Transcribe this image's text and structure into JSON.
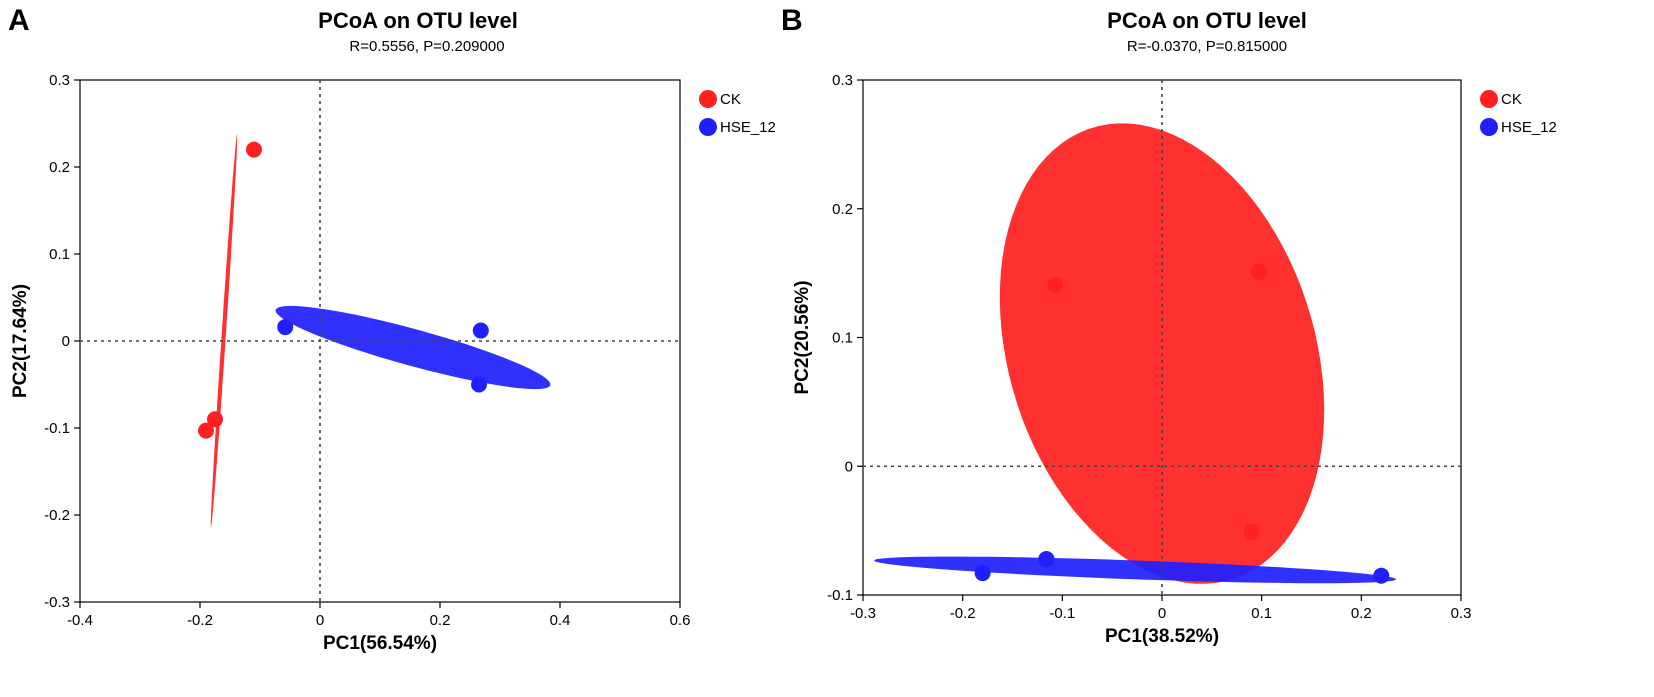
{
  "chart_data": [
    {
      "type": "scatter",
      "panel_label": "A",
      "title": "PCoA on OTU level",
      "subtitle": "R=0.5556, P=0.209000",
      "xlabel": "PC1(56.54%)",
      "ylabel": "PC2(17.64%)",
      "xlim": [
        -0.4,
        0.6
      ],
      "ylim": [
        -0.3,
        0.3
      ],
      "xticks": [
        -0.4,
        -0.2,
        0,
        0.2,
        0.4,
        0.6
      ],
      "yticks": [
        -0.3,
        -0.2,
        -0.1,
        0,
        0.1,
        0.2,
        0.3
      ],
      "xtick_labels": [
        "-0.4",
        "-0.2",
        "0",
        "0.2",
        "0.4",
        "0.6"
      ],
      "ytick_labels": [
        "-0.3",
        "-0.2",
        "-0.1",
        "0",
        "0.1",
        "0.2",
        "0.3"
      ],
      "reference_lines": {
        "x": 0,
        "y": 0
      },
      "legend": {
        "placement": "top-right outside"
      },
      "series": [
        {
          "name": "CK",
          "color": "#ff2020",
          "points": [
            [
              -0.11,
              0.22
            ],
            [
              -0.19,
              -0.103
            ],
            [
              -0.175,
              -0.09
            ]
          ],
          "ellipse": {
            "cx": -0.16,
            "cy": 0.0115,
            "semi_major": 0.227,
            "semi_minor": 0.0035,
            "angle_deg": 84.5
          }
        },
        {
          "name": "HSE_12",
          "color": "#2020ff",
          "points": [
            [
              -0.058,
              0.016
            ],
            [
              0.268,
              0.012
            ],
            [
              0.265,
              -0.05
            ]
          ],
          "ellipse": {
            "cx": 0.155,
            "cy": -0.0075,
            "semi_major": 0.233,
            "semi_minor": 0.0215,
            "angle_deg": -10.6
          }
        }
      ]
    },
    {
      "type": "scatter",
      "panel_label": "B",
      "title": "PCoA on OTU level",
      "subtitle": "R=-0.0370, P=0.815000",
      "xlabel": "PC1(38.52%)",
      "ylabel": "PC2(20.56%)",
      "xlim": [
        -0.3,
        0.3
      ],
      "ylim": [
        -0.1,
        0.3
      ],
      "xticks": [
        -0.3,
        -0.2,
        -0.1,
        0,
        0.1,
        0.2,
        0.3
      ],
      "yticks": [
        -0.1,
        0,
        0.1,
        0.2,
        0.3
      ],
      "xtick_labels": [
        "-0.3",
        "-0.2",
        "-0.1",
        "0",
        "0.1",
        "0.2",
        "0.3"
      ],
      "ytick_labels": [
        "-0.1",
        "0",
        "0.1",
        "0.2",
        "0.3"
      ],
      "reference_lines": {
        "x": 0,
        "y": 0
      },
      "legend": {
        "placement": "top-right outside"
      },
      "series": [
        {
          "name": "CK",
          "color": "#ff2020",
          "points": [
            [
              -0.107,
              0.141
            ],
            [
              0.097,
              0.151
            ],
            [
              0.09,
              -0.051
            ]
          ],
          "ellipse": {
            "cx": 0.0,
            "cy": 0.0875,
            "semi_major": 0.192,
            "semi_minor": 0.147,
            "angle_deg": -55.6
          }
        },
        {
          "name": "HSE_12",
          "color": "#2020ff",
          "points": [
            [
              -0.18,
              -0.083
            ],
            [
              -0.116,
              -0.072
            ],
            [
              0.22,
              -0.085
            ]
          ],
          "ellipse": {
            "cx": -0.027,
            "cy": -0.0805,
            "semi_major": 0.262,
            "semi_minor": 0.0073,
            "angle_deg": -1.6
          }
        }
      ]
    }
  ]
}
